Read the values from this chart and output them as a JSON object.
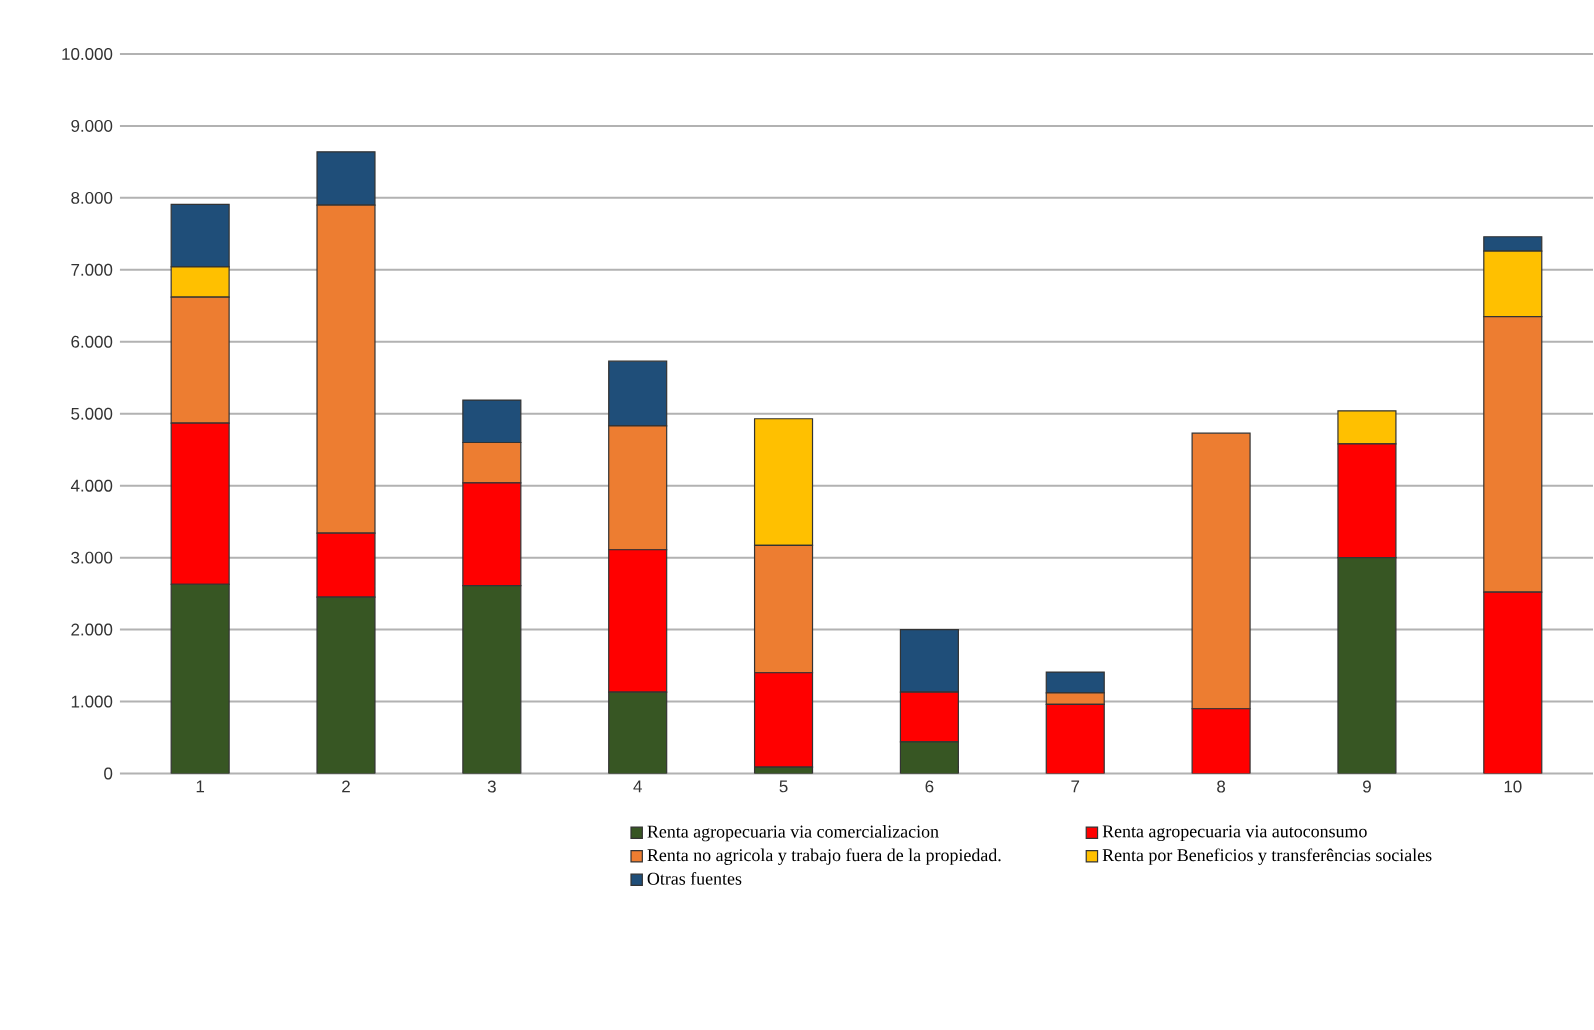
{
  "chart_data": {
    "type": "bar",
    "stacked": true,
    "categories": [
      "1",
      "2",
      "3",
      "4",
      "5",
      "6",
      "7",
      "8",
      "9",
      "10"
    ],
    "series": [
      {
        "name": "Renta agropecuaria via comercializacion",
        "color": "#375623",
        "values": [
          2630,
          2450,
          2610,
          1130,
          90,
          440,
          0,
          0,
          3000,
          0
        ]
      },
      {
        "name": "Renta agropecuaria via autoconsumo",
        "color": "#ff0000",
        "values": [
          2240,
          890,
          1430,
          1980,
          1310,
          690,
          960,
          900,
          1580,
          2520
        ]
      },
      {
        "name": "Renta no agricola y trabajo fuera de la propiedad.",
        "color": "#ed7d31",
        "values": [
          1750,
          4560,
          560,
          1720,
          1770,
          0,
          160,
          3830,
          0,
          3830
        ]
      },
      {
        "name": "Renta por Beneficios y transferências  sociales",
        "color": "#ffc000",
        "values": [
          420,
          0,
          0,
          0,
          1760,
          0,
          0,
          0,
          460,
          910
        ]
      },
      {
        "name": "Otras fuentes",
        "color": "#1f4e79",
        "values": [
          870,
          740,
          590,
          900,
          null,
          870,
          290,
          0,
          0,
          200
        ]
      }
    ],
    "ylim": [
      0,
      10000
    ],
    "yticks": [
      0,
      {
        "value": 1000,
        "label": "1.000"
      },
      {
        "value": 2000,
        "label": "2.000"
      },
      {
        "value": 3000,
        "label": "3.000"
      },
      {
        "value": 4000,
        "label": "4.000"
      },
      {
        "value": 5000,
        "label": "5.000"
      },
      {
        "value": 6000,
        "label": "6.000"
      },
      {
        "value": 7000,
        "label": "7.000"
      },
      {
        "value": 8000,
        "label": "8.000"
      },
      {
        "value": 9000,
        "label": "9.000"
      },
      {
        "value": 10000,
        "label": "10.000"
      }
    ],
    "grid": "y",
    "legend": "bottom"
  }
}
